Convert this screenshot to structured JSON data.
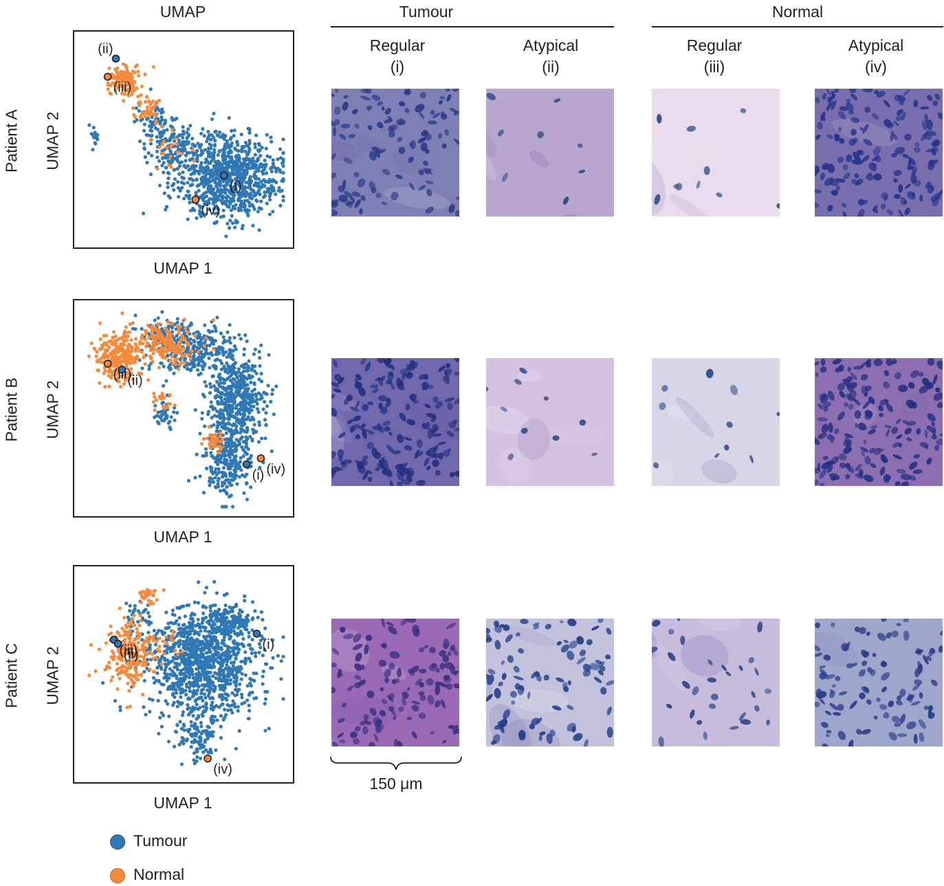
{
  "headers": {
    "umap": "UMAP",
    "tumour": "Tumour",
    "normal": "Normal",
    "columns": [
      {
        "line1": "Regular",
        "line2": "(i)"
      },
      {
        "line1": "Atypical",
        "line2": "(ii)"
      },
      {
        "line1": "Regular",
        "line2": "(iii)"
      },
      {
        "line1": "Atypical",
        "line2": "(iv)"
      }
    ]
  },
  "rows": [
    {
      "label": "Patient A",
      "xlabel": "UMAP 1",
      "ylabel": "UMAP 2"
    },
    {
      "label": "Patient B",
      "xlabel": "UMAP 1",
      "ylabel": "UMAP 2"
    },
    {
      "label": "Patient C",
      "xlabel": "UMAP 1",
      "ylabel": "UMAP 2"
    }
  ],
  "scale_bar": "150 μm",
  "chart_data": [
    {
      "type": "scatter",
      "title": "Patient A",
      "xlabel": "UMAP 1",
      "ylabel": "UMAP 2",
      "xlim": [
        0,
        100
      ],
      "ylim": [
        0,
        100
      ],
      "grid": false,
      "legend": "bottom-left",
      "series": [
        {
          "name": "Tumour",
          "color": "#2f78b5",
          "clusters": [
            {
              "cx": 72,
              "cy": 32,
              "sx": 15,
              "sy": 12,
              "n": 900
            },
            {
              "cx": 45,
              "cy": 46,
              "sx": 7,
              "sy": 7,
              "n": 150
            },
            {
              "cx": 36,
              "cy": 59,
              "sx": 5,
              "sy": 5,
              "n": 60
            },
            {
              "cx": 7,
              "cy": 50,
              "sx": 1.2,
              "sy": 4,
              "n": 18
            }
          ]
        },
        {
          "name": "Normal",
          "color": "#f58a3c",
          "clusters": [
            {
              "cx": 21,
              "cy": 79,
              "sx": 5,
              "sy": 5,
              "n": 130
            },
            {
              "cx": 32,
              "cy": 64,
              "sx": 4,
              "sy": 4,
              "n": 40
            },
            {
              "cx": 46,
              "cy": 46,
              "sx": 7,
              "sy": 6,
              "n": 20
            }
          ]
        }
      ],
      "highlights": [
        {
          "label": "(i)",
          "x": 70,
          "y": 32,
          "series": "Tumour"
        },
        {
          "label": "(ii)",
          "x": 17,
          "y": 90,
          "series": "Tumour"
        },
        {
          "label": "(iii)",
          "x": 13,
          "y": 81,
          "series": "Normal"
        },
        {
          "label": "(iv)",
          "x": 56,
          "y": 20,
          "series": "Normal"
        }
      ]
    },
    {
      "type": "scatter",
      "title": "Patient B",
      "xlabel": "UMAP 1",
      "ylabel": "UMAP 2",
      "xlim": [
        0,
        100
      ],
      "ylim": [
        0,
        100
      ],
      "grid": false,
      "legend": "bottom-left",
      "series": [
        {
          "name": "Tumour",
          "color": "#2f78b5",
          "clusters": [
            {
              "cx": 55,
              "cy": 78,
              "sx": 12,
              "sy": 8,
              "n": 280
            },
            {
              "cx": 76,
              "cy": 55,
              "sx": 8,
              "sy": 12,
              "n": 480
            },
            {
              "cx": 72,
              "cy": 25,
              "sx": 7,
              "sy": 11,
              "n": 280
            },
            {
              "cx": 40,
              "cy": 88,
              "sx": 7,
              "sy": 4,
              "n": 80
            },
            {
              "cx": 41,
              "cy": 47,
              "sx": 3,
              "sy": 3,
              "n": 40
            }
          ]
        },
        {
          "name": "Normal",
          "color": "#f58a3c",
          "clusters": [
            {
              "cx": 18,
              "cy": 75,
              "sx": 6,
              "sy": 7,
              "n": 230
            },
            {
              "cx": 40,
              "cy": 82,
              "sx": 11,
              "sy": 6,
              "n": 200
            },
            {
              "cx": 65,
              "cy": 34,
              "sx": 3,
              "sy": 3,
              "n": 40
            },
            {
              "cx": 40,
              "cy": 53,
              "sx": 4,
              "sy": 3,
              "n": 20
            }
          ]
        }
      ],
      "highlights": [
        {
          "label": "(iii)",
          "x": 13,
          "y": 72,
          "series": "Normal"
        },
        {
          "label": "(ii)",
          "x": 20,
          "y": 69,
          "series": "Tumour"
        },
        {
          "label": "(i)",
          "x": 81,
          "y": 22,
          "series": "Tumour"
        },
        {
          "label": "(iv)",
          "x": 88,
          "y": 25,
          "series": "Normal"
        }
      ]
    },
    {
      "type": "scatter",
      "title": "Patient C",
      "xlabel": "UMAP 1",
      "ylabel": "UMAP 2",
      "xlim": [
        0,
        100
      ],
      "ylim": [
        0,
        100
      ],
      "grid": false,
      "legend": "bottom-left",
      "series": [
        {
          "name": "Tumour",
          "color": "#2f78b5",
          "clusters": [
            {
              "cx": 60,
              "cy": 55,
              "sx": 16,
              "sy": 16,
              "n": 1150
            },
            {
              "cx": 72,
              "cy": 76,
              "sx": 8,
              "sy": 5,
              "n": 160
            },
            {
              "cx": 58,
              "cy": 18,
              "sx": 6,
              "sy": 7,
              "n": 100
            },
            {
              "cx": 28,
              "cy": 79,
              "sx": 4,
              "sy": 5,
              "n": 30
            }
          ]
        },
        {
          "name": "Normal",
          "color": "#f58a3c",
          "clusters": [
            {
              "cx": 24,
              "cy": 60,
              "sx": 7,
              "sy": 9,
              "n": 240
            },
            {
              "cx": 32,
              "cy": 89,
              "sx": 3,
              "sy": 3,
              "n": 25
            },
            {
              "cx": 40,
              "cy": 66,
              "sx": 5,
              "sy": 4,
              "n": 20
            }
          ]
        }
      ],
      "highlights": [
        {
          "label": "(iii)",
          "x": 16,
          "y": 67,
          "series": "Tumour"
        },
        {
          "label": "(ii)",
          "x": 18,
          "y": 65,
          "series": "Tumour"
        },
        {
          "label": "(i)",
          "x": 86,
          "y": 70,
          "series": "Tumour"
        },
        {
          "label": "(iv)",
          "x": 62,
          "y": 8,
          "series": "Normal"
        }
      ]
    }
  ],
  "legend": [
    {
      "label": "Tumour",
      "color": "#2f78b5"
    },
    {
      "label": "Normal",
      "color": "#f58a3c"
    }
  ],
  "micrographs": [
    [
      {
        "caption": "",
        "base": "#7e7fb4",
        "nucleus": "#2c3b86",
        "density": 110
      },
      {
        "caption": "",
        "base": "#b9a6cf",
        "nucleus": "#2a4a84",
        "density": 8
      },
      {
        "caption": "",
        "base": "#e9dcec",
        "nucleus": "#2c4f87",
        "density": 10
      },
      {
        "caption": "",
        "base": "#7a6fae",
        "nucleus": "#26338a",
        "density": 150
      }
    ],
    [
      {
        "caption": "",
        "base": "#6f68ad",
        "nucleus": "#222f7f",
        "density": 170
      },
      {
        "caption": "",
        "base": "#d4c2e0",
        "nucleus": "#2c4b86",
        "density": 10
      },
      {
        "caption": "",
        "base": "#d6d6e6",
        "nucleus": "#304a86",
        "density": 10
      },
      {
        "caption": "",
        "base": "#8b6fb0",
        "nucleus": "#252f82",
        "density": 160
      }
    ],
    [
      {
        "caption": "",
        "base": "#9a6ab5",
        "nucleus": "#3a2f80",
        "density": 120
      },
      {
        "caption": "",
        "base": "#c2c2dc",
        "nucleus": "#203c86",
        "density": 90
      },
      {
        "caption": "",
        "base": "#c7bcdc",
        "nucleus": "#2b4585",
        "density": 30
      },
      {
        "caption": "",
        "base": "#9fa6cc",
        "nucleus": "#283c86",
        "density": 100
      }
    ]
  ]
}
